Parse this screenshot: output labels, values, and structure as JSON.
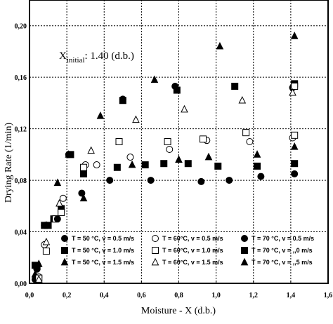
{
  "chart_data": {
    "type": "scatter",
    "xlabel": "Moisture - X (d.b.)",
    "ylabel": "Drying Rate (1/min)",
    "xlim": [
      0,
      1.6
    ],
    "ylim": [
      0,
      0.22
    ],
    "xticks": [
      "0,0",
      "0,2",
      "0,4",
      "0,6",
      "0,8",
      "1,0",
      "1,2",
      "1,4",
      "1,6"
    ],
    "yticks": [
      "0,00",
      "0,04",
      "0,08",
      "0,12",
      "0,16",
      "0,20"
    ],
    "grid": "dotted",
    "annotation": {
      "main": "X",
      "sub": "initial",
      "rest": ": 1.40 (d.b.)"
    },
    "legend_position": "bottom",
    "series": [
      {
        "name": "T = 50 °C, v = 0.5 m/s",
        "marker": "circle",
        "fill": "filled",
        "points": [
          [
            0.03,
            0.003
          ],
          [
            0.08,
            0.045
          ],
          [
            0.21,
            0.1
          ],
          [
            0.28,
            0.07
          ],
          [
            0.43,
            0.08
          ],
          [
            0.5,
            0.143
          ],
          [
            0.65,
            0.08
          ],
          [
            0.78,
            0.153
          ],
          [
            0.92,
            0.079
          ],
          [
            1.07,
            0.08
          ],
          [
            1.24,
            0.083
          ],
          [
            1.41,
            0.152
          ],
          [
            1.42,
            0.085
          ]
        ]
      },
      {
        "name": "T = 50 °C, v = 1.0 m/s",
        "marker": "square",
        "fill": "filled",
        "points": [
          [
            0.03,
            0.014
          ],
          [
            0.08,
            0.045
          ],
          [
            0.13,
            0.05
          ],
          [
            0.17,
            0.058
          ],
          [
            0.22,
            0.1
          ],
          [
            0.29,
            0.085
          ],
          [
            0.47,
            0.09
          ],
          [
            0.5,
            0.142
          ],
          [
            0.62,
            0.092
          ],
          [
            0.72,
            0.093
          ],
          [
            0.79,
            0.15
          ],
          [
            0.85,
            0.093
          ],
          [
            1.01,
            0.091
          ],
          [
            1.1,
            0.153
          ],
          [
            1.22,
            0.091
          ],
          [
            1.42,
            0.155
          ],
          [
            1.42,
            0.093
          ]
        ]
      },
      {
        "name": "T = 50 °C, v = 1.5 m/s",
        "marker": "triangle",
        "fill": "filled",
        "points": [
          [
            0.03,
            0.007
          ],
          [
            0.09,
            0.045
          ],
          [
            0.15,
            0.078
          ],
          [
            0.21,
            0.1
          ],
          [
            0.29,
            0.066
          ],
          [
            0.38,
            0.13
          ],
          [
            0.55,
            0.092
          ],
          [
            0.67,
            0.158
          ],
          [
            0.8,
            0.096
          ],
          [
            0.96,
            0.098
          ],
          [
            1.02,
            0.184
          ],
          [
            1.22,
            0.1
          ],
          [
            1.42,
            0.192
          ],
          [
            1.42,
            0.106
          ]
        ]
      },
      {
        "name": "T = 60 °C, v = 0.5 m/s",
        "marker": "circle",
        "fill": "open",
        "points": [
          [
            0.05,
            0.005
          ],
          [
            0.08,
            0.03
          ],
          [
            0.18,
            0.066
          ],
          [
            0.3,
            0.092
          ],
          [
            0.36,
            0.092
          ],
          [
            0.54,
            0.098
          ],
          [
            0.75,
            0.104
          ],
          [
            0.95,
            0.111
          ],
          [
            1.18,
            0.11
          ],
          [
            1.41,
            0.113
          ]
        ]
      },
      {
        "name": "T = 60 °C, v = 1.0 m/s",
        "marker": "square",
        "fill": "open",
        "points": [
          [
            0.05,
            0.004
          ],
          [
            0.09,
            0.025
          ],
          [
            0.14,
            0.05
          ],
          [
            0.17,
            0.055
          ],
          [
            0.29,
            0.09
          ],
          [
            0.48,
            0.11
          ],
          [
            0.74,
            0.11
          ],
          [
            0.93,
            0.112
          ],
          [
            1.16,
            0.117
          ],
          [
            1.42,
            0.115
          ],
          [
            1.42,
            0.153
          ]
        ]
      },
      {
        "name": "T = 60 °C, v = 1.5 m/s",
        "marker": "triangle",
        "fill": "open",
        "points": [
          [
            0.05,
            0.003
          ],
          [
            0.09,
            0.032
          ],
          [
            0.16,
            0.062
          ],
          [
            0.33,
            0.103
          ],
          [
            0.57,
            0.127
          ],
          [
            0.83,
            0.135
          ],
          [
            1.14,
            0.142
          ],
          [
            1.41,
            0.148
          ]
        ]
      },
      {
        "name": "T = 70 °C, v = 0.5 m/s",
        "marker": "circle",
        "fill": "filled",
        "points": [
          [
            0.04,
            0.011
          ],
          [
            0.15,
            0.05
          ]
        ]
      },
      {
        "name": "T = 70 °C, v = 1.0 m/s",
        "marker": "square",
        "fill": "filled",
        "points": [
          [
            0.04,
            0.013
          ],
          [
            0.1,
            0.045
          ]
        ]
      },
      {
        "name": "T = 70 °C, v = 1.5 m/s",
        "marker": "triangle",
        "fill": "filled",
        "points": [
          [
            0.05,
            0.015
          ]
        ]
      }
    ]
  },
  "legend_display": [
    {
      "marker": "circle",
      "fill": "filled",
      "label": "T = 50 °C, v = 0.5 m/s"
    },
    {
      "marker": "square",
      "fill": "filled",
      "label": "T = 50 °C, v = 1.0 m/s"
    },
    {
      "marker": "triangle",
      "fill": "filled",
      "label": "T = 50 °C, v = 1.5 m/s"
    },
    {
      "marker": "circle",
      "fill": "open",
      "label": "T = 60°C, v = 0.5 m/s"
    },
    {
      "marker": "square",
      "fill": "open",
      "label": "T = 60°C, v = 1.0 m/s"
    },
    {
      "marker": "triangle",
      "fill": "open",
      "label": "T = 60°C, v = 1.5 m/s"
    },
    {
      "marker": "circle",
      "fill": "filled",
      "label": "T = 70 °C, v = 0.5 m/s"
    },
    {
      "marker": "square",
      "fill": "filled",
      "label": "T = 70 °C, v = ,,0 m/s"
    },
    {
      "marker": "triangle",
      "fill": "filled",
      "label": "T = 70 °C, v = ,,5 m/s"
    }
  ]
}
